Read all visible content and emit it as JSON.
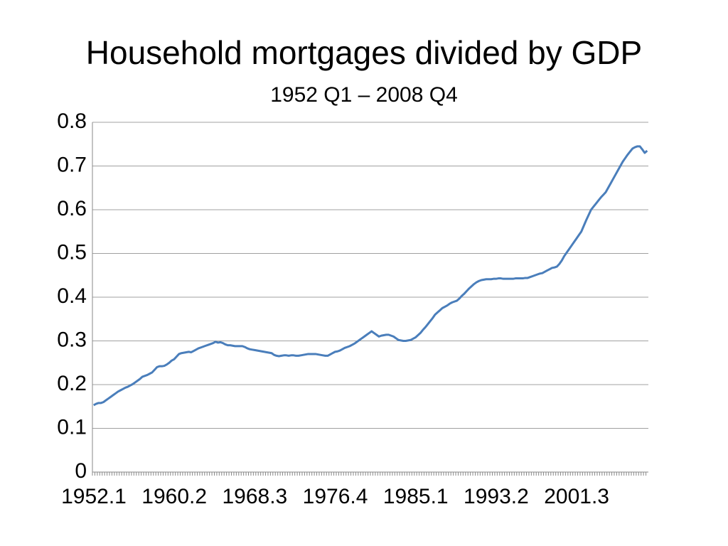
{
  "chart_data": {
    "type": "line",
    "title": "Household mortgages divided by GDP",
    "subtitle": "1952 Q1 – 2008 Q4",
    "categories": [
      "1952.1",
      null,
      null,
      null,
      null,
      null,
      null,
      null,
      null,
      null,
      null,
      null,
      null,
      null,
      null,
      null,
      null,
      null,
      null,
      null,
      null,
      null,
      null,
      null,
      null,
      null,
      null,
      null,
      null,
      null,
      null,
      null,
      null,
      "1960.2",
      null,
      null,
      null,
      null,
      null,
      null,
      null,
      null,
      null,
      null,
      null,
      null,
      null,
      null,
      null,
      null,
      null,
      null,
      null,
      null,
      null,
      null,
      null,
      null,
      null,
      null,
      null,
      null,
      null,
      null,
      null,
      null,
      "1968.3",
      null,
      null,
      null,
      null,
      null,
      null,
      null,
      null,
      null,
      null,
      null,
      null,
      null,
      null,
      null,
      null,
      null,
      null,
      null,
      null,
      null,
      null,
      null,
      null,
      null,
      null,
      null,
      null,
      null,
      null,
      null,
      null,
      "1976.4",
      null,
      null,
      null,
      null,
      null,
      null,
      null,
      null,
      null,
      null,
      null,
      null,
      null,
      null,
      null,
      null,
      null,
      null,
      null,
      null,
      null,
      null,
      null,
      null,
      null,
      null,
      null,
      null,
      null,
      null,
      null,
      null,
      "1985.1",
      null,
      null,
      null,
      null,
      null,
      null,
      null,
      null,
      null,
      null,
      null,
      null,
      null,
      null,
      null,
      null,
      null,
      null,
      null,
      null,
      null,
      null,
      null,
      null,
      null,
      null,
      null,
      null,
      null,
      null,
      null,
      null,
      "1993.2",
      null,
      null,
      null,
      null,
      null,
      null,
      null,
      null,
      null,
      null,
      null,
      null,
      null,
      null,
      null,
      null,
      null,
      null,
      null,
      null,
      null,
      null,
      null,
      null,
      null,
      null,
      null,
      null,
      null,
      null,
      null,
      null,
      "2001.3",
      null,
      null,
      null,
      null,
      null,
      null,
      null,
      null,
      null,
      null,
      null,
      null,
      null,
      null,
      null,
      null,
      null,
      null,
      null,
      null,
      null,
      null,
      null,
      null,
      null,
      null,
      null,
      null,
      null
    ],
    "series": [
      {
        "name": "Household mortgages / GDP",
        "color": "#4a7ebb",
        "values": [
          0.153,
          0.156,
          0.158,
          0.158,
          0.16,
          0.164,
          0.168,
          0.172,
          0.176,
          0.18,
          0.184,
          0.187,
          0.19,
          0.193,
          0.195,
          0.198,
          0.201,
          0.205,
          0.209,
          0.213,
          0.218,
          0.22,
          0.222,
          0.225,
          0.228,
          0.234,
          0.24,
          0.242,
          0.242,
          0.243,
          0.246,
          0.25,
          0.255,
          0.258,
          0.264,
          0.27,
          0.272,
          0.273,
          0.274,
          0.275,
          0.274,
          0.277,
          0.28,
          0.283,
          0.285,
          0.287,
          0.289,
          0.291,
          0.293,
          0.295,
          0.298,
          0.296,
          0.297,
          0.295,
          0.292,
          0.29,
          0.29,
          0.289,
          0.288,
          0.288,
          0.288,
          0.288,
          0.286,
          0.283,
          0.281,
          0.28,
          0.279,
          0.278,
          0.277,
          0.276,
          0.275,
          0.274,
          0.273,
          0.272,
          0.268,
          0.266,
          0.265,
          0.266,
          0.267,
          0.267,
          0.266,
          0.267,
          0.267,
          0.266,
          0.266,
          0.267,
          0.268,
          0.269,
          0.27,
          0.27,
          0.27,
          0.27,
          0.269,
          0.268,
          0.267,
          0.266,
          0.266,
          0.269,
          0.272,
          0.275,
          0.276,
          0.278,
          0.281,
          0.284,
          0.286,
          0.288,
          0.291,
          0.294,
          0.298,
          0.302,
          0.306,
          0.31,
          0.314,
          0.318,
          0.322,
          0.318,
          0.314,
          0.31,
          0.312,
          0.313,
          0.314,
          0.314,
          0.312,
          0.31,
          0.306,
          0.302,
          0.301,
          0.3,
          0.3,
          0.301,
          0.302,
          0.305,
          0.308,
          0.313,
          0.318,
          0.325,
          0.331,
          0.338,
          0.345,
          0.352,
          0.36,
          0.365,
          0.37,
          0.375,
          0.378,
          0.381,
          0.385,
          0.388,
          0.39,
          0.392,
          0.397,
          0.403,
          0.408,
          0.414,
          0.42,
          0.425,
          0.43,
          0.434,
          0.437,
          0.439,
          0.44,
          0.441,
          0.441,
          0.441,
          0.442,
          0.442,
          0.443,
          0.443,
          0.442,
          0.442,
          0.442,
          0.442,
          0.442,
          0.443,
          0.443,
          0.443,
          0.443,
          0.444,
          0.444,
          0.446,
          0.448,
          0.45,
          0.452,
          0.454,
          0.455,
          0.458,
          0.461,
          0.464,
          0.467,
          0.468,
          0.47,
          0.476,
          0.484,
          0.494,
          0.502,
          0.51,
          0.518,
          0.526,
          0.534,
          0.542,
          0.55,
          0.563,
          0.576,
          0.588,
          0.6,
          0.607,
          0.614,
          0.621,
          0.628,
          0.634,
          0.64,
          0.65,
          0.66,
          0.67,
          0.68,
          0.69,
          0.7,
          0.71,
          0.718,
          0.726,
          0.733,
          0.74,
          0.743,
          0.745,
          0.745,
          0.738,
          0.73,
          0.735
        ]
      }
    ],
    "ylim": [
      0,
      0.8
    ],
    "yticks": [
      0,
      0.1,
      0.2,
      0.3,
      0.4,
      0.5,
      0.6,
      0.7,
      0.8
    ],
    "grid": true
  }
}
